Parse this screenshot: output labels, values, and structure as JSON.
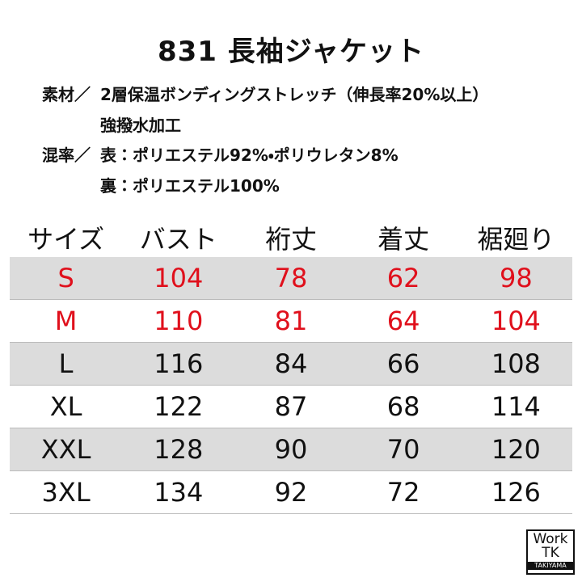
{
  "title": "831 長袖ジャケット",
  "spec": [
    {
      "label": "素材／",
      "lines": [
        "2層保温ボンディングストレッチ（伸長率20%以上）",
        "強撥水加工"
      ]
    },
    {
      "label": "混率／",
      "lines": [
        "表：ポリエステル92%・ポリウレタン8%",
        "裏：ポリエステル100%"
      ]
    }
  ],
  "table": {
    "header": [
      "サイズ",
      "バスト",
      "裄丈",
      "着丈",
      "裾廻り"
    ],
    "rows": [
      {
        "color": "#e0101c",
        "cells": [
          "S",
          104,
          78,
          62,
          98
        ]
      },
      {
        "color": "#e0101c",
        "cells": [
          "M",
          110,
          81,
          64,
          104
        ]
      },
      {
        "color": "#111111",
        "cells": [
          "L",
          116,
          84,
          66,
          108
        ]
      },
      {
        "color": "#111111",
        "cells": [
          "XL",
          122,
          87,
          68,
          114
        ]
      },
      {
        "color": "#111111",
        "cells": [
          "XXL",
          128,
          90,
          70,
          120
        ]
      },
      {
        "color": "#111111",
        "cells": [
          "3XL",
          134,
          92,
          72,
          126
        ]
      }
    ]
  },
  "logo": {
    "line1": "Work",
    "line2": "TK",
    "line3": "TAKIYAMA"
  }
}
